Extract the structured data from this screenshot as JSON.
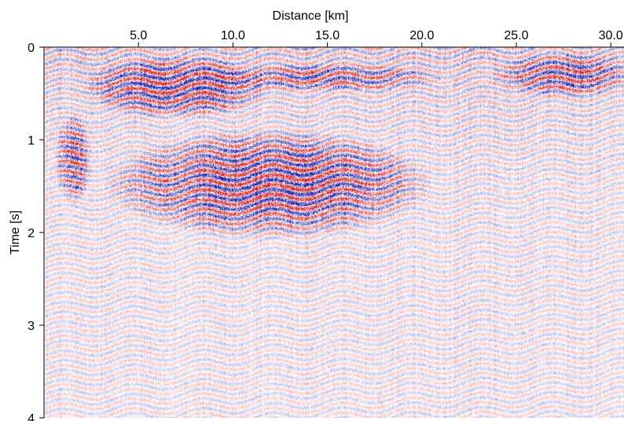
{
  "chart_data": {
    "type": "heatmap",
    "title": "",
    "xlabel": "Distance [km]",
    "ylabel": "Time [s]",
    "x_axis_position": "top",
    "xlim": [
      0.0,
      30.7
    ],
    "ylim": [
      0,
      4
    ],
    "y_inverted": true,
    "x_ticks": [
      5,
      10,
      15,
      20,
      25,
      30
    ],
    "x_tick_labels": [
      "5.0",
      "10.0",
      "15.0",
      "20.0",
      "25.0",
      "30.0"
    ],
    "y_ticks": [
      0,
      1,
      2,
      3,
      4
    ],
    "y_tick_labels": [
      "0",
      "1",
      "2",
      "3",
      "4"
    ],
    "grid": false,
    "colormap": {
      "negative": "#1a1aa6",
      "zero": "#ffffff",
      "positive": "#d41c1c"
    },
    "description_of_field": "seismic amplitude section",
    "high_amplitude_zones": [
      {
        "x_range": [
          0.8,
          2.3
        ],
        "y_range": [
          0.8,
          1.6
        ],
        "strength": 0.8
      },
      {
        "x_range": [
          3.0,
          11.0
        ],
        "y_range": [
          0.15,
          0.7
        ],
        "strength": 0.9
      },
      {
        "x_range": [
          5.0,
          18.8
        ],
        "y_range": [
          1.0,
          1.95
        ],
        "strength": 1.0
      },
      {
        "x_range": [
          10.0,
          20.0
        ],
        "y_range": [
          0.2,
          0.45
        ],
        "strength": 0.6
      },
      {
        "x_range": [
          24.5,
          30.7
        ],
        "y_range": [
          0.1,
          0.5
        ],
        "strength": 0.7
      }
    ]
  }
}
